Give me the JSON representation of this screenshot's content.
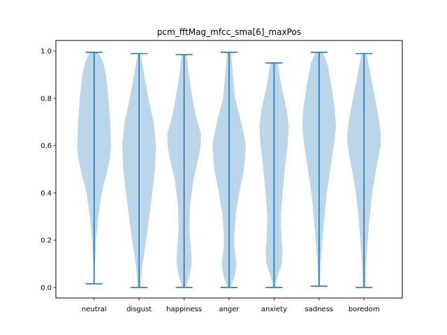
{
  "chart_data": {
    "type": "violin",
    "title": "pcm_fftMag_mfcc_sma[6]_maxPos",
    "xlabel": "",
    "ylabel": "",
    "ylim": [
      -0.045,
      1.045
    ],
    "yticks": [
      0.0,
      0.2,
      0.4,
      0.6,
      0.8,
      1.0
    ],
    "ytick_labels": [
      "0.0",
      "0.2",
      "0.4",
      "0.6",
      "0.8",
      "1.0"
    ],
    "categories": [
      "neutral",
      "disgust",
      "happiness",
      "anger",
      "anxiety",
      "sadness",
      "boredom"
    ],
    "grid": false,
    "legend": "none",
    "colors": {
      "body": "#1f77b4",
      "body_alpha": 0.3,
      "line": "#1f77b4"
    },
    "violins": [
      {
        "min": 0.015,
        "max": 0.995,
        "density": [
          [
            0.015,
            0.02
          ],
          [
            0.05,
            0.03
          ],
          [
            0.1,
            0.05
          ],
          [
            0.2,
            0.12
          ],
          [
            0.3,
            0.25
          ],
          [
            0.4,
            0.45
          ],
          [
            0.5,
            0.8
          ],
          [
            0.55,
            0.95
          ],
          [
            0.6,
            1.0
          ],
          [
            0.7,
            0.95
          ],
          [
            0.8,
            0.85
          ],
          [
            0.9,
            0.7
          ],
          [
            0.95,
            0.55
          ],
          [
            0.995,
            0.25
          ]
        ]
      },
      {
        "min": 0.0,
        "max": 0.99,
        "density": [
          [
            0.0,
            0.08
          ],
          [
            0.05,
            0.14
          ],
          [
            0.1,
            0.2
          ],
          [
            0.2,
            0.42
          ],
          [
            0.3,
            0.6
          ],
          [
            0.4,
            0.78
          ],
          [
            0.5,
            0.94
          ],
          [
            0.6,
            1.0
          ],
          [
            0.7,
            0.86
          ],
          [
            0.8,
            0.55
          ],
          [
            0.9,
            0.3
          ],
          [
            0.99,
            0.08
          ]
        ]
      },
      {
        "min": 0.0,
        "max": 0.985,
        "density": [
          [
            0.0,
            0.1
          ],
          [
            0.05,
            0.32
          ],
          [
            0.1,
            0.44
          ],
          [
            0.15,
            0.42
          ],
          [
            0.25,
            0.32
          ],
          [
            0.35,
            0.36
          ],
          [
            0.45,
            0.54
          ],
          [
            0.55,
            0.86
          ],
          [
            0.6,
            0.98
          ],
          [
            0.65,
            1.0
          ],
          [
            0.72,
            0.72
          ],
          [
            0.8,
            0.5
          ],
          [
            0.9,
            0.28
          ],
          [
            0.985,
            0.14
          ]
        ]
      },
      {
        "min": 0.0,
        "max": 0.995,
        "density": [
          [
            0.0,
            0.1
          ],
          [
            0.05,
            0.34
          ],
          [
            0.1,
            0.44
          ],
          [
            0.15,
            0.34
          ],
          [
            0.2,
            0.3
          ],
          [
            0.3,
            0.38
          ],
          [
            0.4,
            0.6
          ],
          [
            0.5,
            0.88
          ],
          [
            0.6,
            1.0
          ],
          [
            0.7,
            0.72
          ],
          [
            0.8,
            0.36
          ],
          [
            0.9,
            0.22
          ],
          [
            0.995,
            0.12
          ]
        ]
      },
      {
        "min": 0.0,
        "max": 0.95,
        "density": [
          [
            0.0,
            0.05
          ],
          [
            0.05,
            0.22
          ],
          [
            0.1,
            0.46
          ],
          [
            0.15,
            0.5
          ],
          [
            0.2,
            0.44
          ],
          [
            0.3,
            0.4
          ],
          [
            0.4,
            0.5
          ],
          [
            0.5,
            0.64
          ],
          [
            0.6,
            0.8
          ],
          [
            0.68,
            0.87
          ],
          [
            0.75,
            0.75
          ],
          [
            0.85,
            0.44
          ],
          [
            0.95,
            0.22
          ]
        ]
      },
      {
        "min": 0.005,
        "max": 0.995,
        "density": [
          [
            0.005,
            0.04
          ],
          [
            0.1,
            0.1
          ],
          [
            0.2,
            0.2
          ],
          [
            0.3,
            0.32
          ],
          [
            0.4,
            0.46
          ],
          [
            0.5,
            0.66
          ],
          [
            0.6,
            0.88
          ],
          [
            0.68,
            1.0
          ],
          [
            0.75,
            0.94
          ],
          [
            0.85,
            0.74
          ],
          [
            0.95,
            0.48
          ],
          [
            0.995,
            0.2
          ]
        ]
      },
      {
        "min": 0.0,
        "max": 0.99,
        "density": [
          [
            0.0,
            0.08
          ],
          [
            0.1,
            0.12
          ],
          [
            0.2,
            0.22
          ],
          [
            0.3,
            0.34
          ],
          [
            0.4,
            0.48
          ],
          [
            0.5,
            0.72
          ],
          [
            0.6,
            0.98
          ],
          [
            0.65,
            1.0
          ],
          [
            0.72,
            0.86
          ],
          [
            0.8,
            0.66
          ],
          [
            0.9,
            0.38
          ],
          [
            0.99,
            0.16
          ]
        ]
      }
    ]
  }
}
